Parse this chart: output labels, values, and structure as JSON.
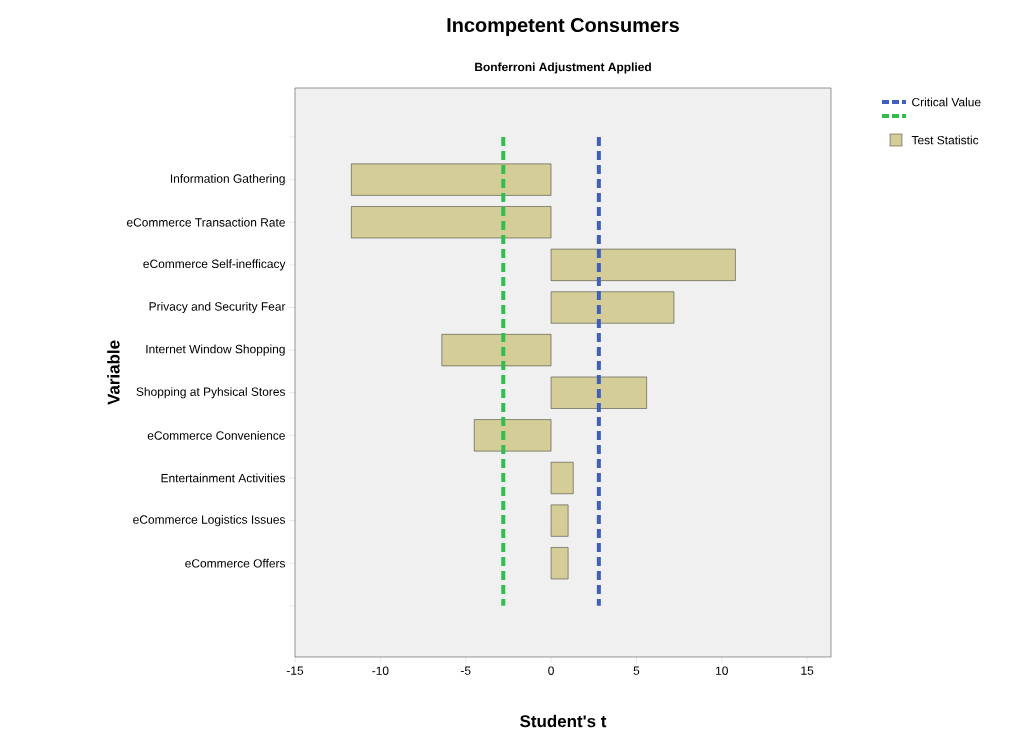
{
  "chart_data": {
    "type": "bar",
    "orientation": "horizontal",
    "title": "Incompetent Consumers",
    "subtitle": "Bonferroni Adjustment Applied",
    "xlabel": "Student's t",
    "ylabel": "Variable",
    "categories": [
      null,
      "Information Gathering",
      "eCommerce Transaction Rate",
      "eCommerce Self-inefficacy",
      "Privacy and Security Fear",
      "Internet Window Shopping",
      "Shopping at Pyhsical Stores",
      "eCommerce Convenience",
      "Entertainment Activities",
      "eCommerce Logistics Issues",
      "eCommerce Offers",
      null
    ],
    "series": [
      {
        "name": "Test Statistic",
        "color": "#d4cd97",
        "values": [
          null,
          -11.7,
          -11.7,
          10.8,
          7.2,
          -6.4,
          5.6,
          -4.5,
          1.3,
          1.0,
          1.0,
          null
        ]
      }
    ],
    "xlim": [
      -15,
      16.4
    ],
    "xticks": [
      -15,
      -10,
      -5,
      0,
      5,
      10,
      15
    ],
    "ref_lines": [
      {
        "axis": "x",
        "value": 2.8,
        "label": "Critical Value",
        "color": "#3f5fbf",
        "line_style": "dashed"
      },
      {
        "axis": "x",
        "value": -2.8,
        "label": null,
        "color": "#2fbf4f",
        "line_style": "dashed"
      }
    ],
    "legend": "top right",
    "grid": false
  }
}
